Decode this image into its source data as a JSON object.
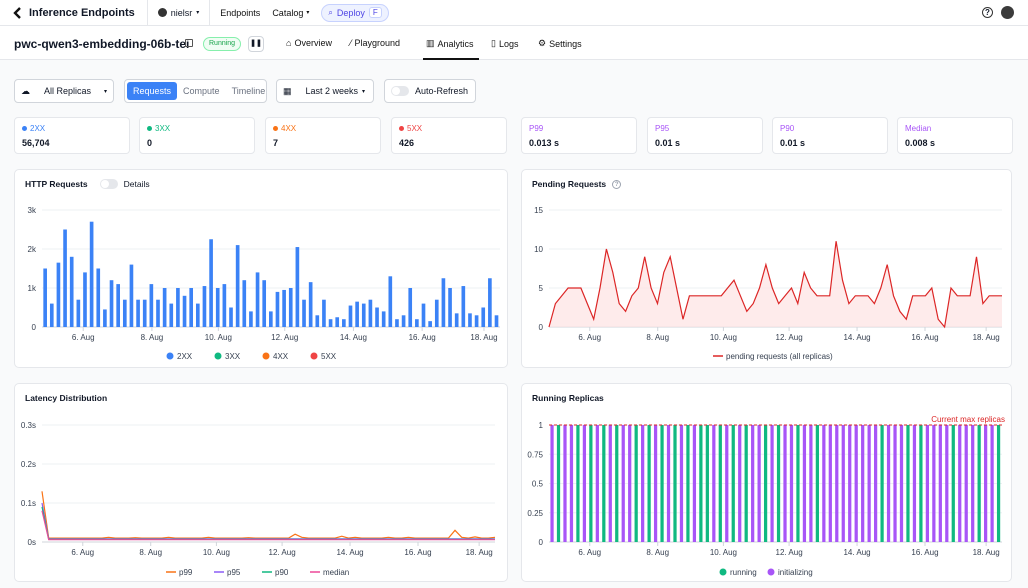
{
  "topbar": {
    "brand": "Inference Endpoints",
    "user": "nielsr",
    "nav": [
      "Endpoints",
      "Catalog"
    ],
    "deploy_label": "Deploy",
    "deploy_shortcut": "F"
  },
  "endpoint": {
    "name": "pwc-qwen3-embedding-06b-tei",
    "status": "Running",
    "tabs": [
      "Overview",
      "Playground",
      "Analytics",
      "Logs",
      "Settings"
    ],
    "active_tab": "Analytics"
  },
  "controls": {
    "replicas": "All Replicas",
    "view_tabs": [
      "Requests",
      "Compute",
      "Timeline"
    ],
    "active_view": "Requests",
    "range": "Last 2 weeks",
    "auto_refresh": "Auto-Refresh"
  },
  "stats": [
    {
      "label": "2XX",
      "value": "56,704",
      "color": "#3b82f6",
      "dot": true
    },
    {
      "label": "3XX",
      "value": "0",
      "color": "#10b981",
      "dot": true
    },
    {
      "label": "4XX",
      "value": "7",
      "color": "#f97316",
      "dot": true
    },
    {
      "label": "5XX",
      "value": "426",
      "color": "#ef4444",
      "dot": true
    },
    {
      "label": "P99",
      "value": "0.013 s",
      "color": "#a855f7",
      "dot": false
    },
    {
      "label": "P95",
      "value": "0.01 s",
      "color": "#a855f7",
      "dot": false
    },
    {
      "label": "P90",
      "value": "0.01 s",
      "color": "#a855f7",
      "dot": false
    },
    {
      "label": "Median",
      "value": "0.008 s",
      "color": "#a855f7",
      "dot": false
    }
  ],
  "panels": {
    "http": {
      "title": "HTTP Requests",
      "toggle": "Details"
    },
    "pending": {
      "title": "Pending Requests"
    },
    "latency": {
      "title": "Latency Distribution"
    },
    "replicas": {
      "title": "Running Replicas",
      "annotation": "Current max replicas"
    }
  },
  "chart_data": [
    {
      "type": "bar",
      "title": "HTTP Requests",
      "x_ticks": [
        "6. Aug",
        "8. Aug",
        "10. Aug",
        "12. Aug",
        "14. Aug",
        "16. Aug",
        "18. Aug"
      ],
      "y_ticks": [
        "0",
        "1k",
        "2k",
        "3k"
      ],
      "ylim": [
        0,
        3000
      ],
      "series": [
        {
          "name": "2XX",
          "color": "#3b82f6",
          "values": [
            1500,
            600,
            1650,
            2500,
            1800,
            700,
            1400,
            2700,
            1500,
            450,
            1200,
            1100,
            700,
            1600,
            700,
            700,
            1100,
            700,
            1000,
            600,
            1000,
            800,
            1000,
            600,
            1050,
            2250,
            1000,
            1100,
            500,
            2100,
            1200,
            400,
            1400,
            1200,
            400,
            900,
            950,
            1000,
            2050,
            700,
            1150,
            300,
            700,
            200,
            250,
            200,
            550,
            650,
            600,
            700,
            500,
            400,
            1300,
            200,
            300,
            1000,
            200,
            600,
            150,
            700,
            1250,
            1000,
            350,
            1050,
            350,
            300,
            500,
            1250,
            300
          ]
        },
        {
          "name": "3XX",
          "color": "#10b981",
          "values": []
        },
        {
          "name": "4XX",
          "color": "#f97316",
          "values": []
        },
        {
          "name": "5XX",
          "color": "#ef4444",
          "values": []
        }
      ]
    },
    {
      "type": "area",
      "title": "Pending Requests",
      "x_ticks": [
        "6. Aug",
        "8. Aug",
        "10. Aug",
        "12. Aug",
        "14. Aug",
        "16. Aug",
        "18. Aug"
      ],
      "y_ticks": [
        "0",
        "5",
        "10",
        "15"
      ],
      "ylim": [
        0,
        15
      ],
      "series": [
        {
          "name": "pending requests (all replicas)",
          "color": "#dc2626",
          "values": [
            0,
            3,
            4,
            5,
            5,
            5,
            3,
            1,
            5,
            10,
            7,
            3,
            2,
            4,
            5,
            9,
            5,
            3,
            7,
            9,
            5,
            1,
            4,
            4,
            4,
            4,
            4,
            4,
            5,
            6,
            4,
            2,
            3,
            5,
            8,
            5,
            3,
            4,
            5,
            3,
            7,
            5,
            4,
            4,
            4,
            11,
            6,
            3,
            4,
            4,
            4,
            3,
            5,
            8,
            4,
            2,
            1,
            4,
            4,
            4,
            5,
            1,
            0,
            5,
            4,
            4,
            4,
            9,
            3,
            4,
            4,
            4
          ]
        }
      ]
    },
    {
      "type": "line",
      "title": "Latency Distribution",
      "x_ticks": [
        "6. Aug",
        "8. Aug",
        "10. Aug",
        "12. Aug",
        "14. Aug",
        "16. Aug",
        "18. Aug"
      ],
      "y_ticks": [
        "0s",
        "0.1s",
        "0.2s",
        "0.3s"
      ],
      "ylim": [
        0,
        0.3
      ],
      "series": [
        {
          "name": "p99",
          "color": "#f97316",
          "values": [
            0.13,
            0.01,
            0.01,
            0.01,
            0.01,
            0.01,
            0.01,
            0.01,
            0.01,
            0.01,
            0.012,
            0.01,
            0.01,
            0.01,
            0.011,
            0.01,
            0.01,
            0.01,
            0.01,
            0.012,
            0.01,
            0.01,
            0.01,
            0.01,
            0.01,
            0.012,
            0.01,
            0.01,
            0.01,
            0.01,
            0.01,
            0.011,
            0.01,
            0.01,
            0.01,
            0.01,
            0.01,
            0.01,
            0.02,
            0.012,
            0.01,
            0.01,
            0.01,
            0.01,
            0.01,
            0.015,
            0.01,
            0.012,
            0.01,
            0.01,
            0.01,
            0.01,
            0.012,
            0.01,
            0.01,
            0.012,
            0.01,
            0.01,
            0.01,
            0.01,
            0.01,
            0.01,
            0.03,
            0.012,
            0.01,
            0.013,
            0.01,
            0.01,
            0.012
          ]
        },
        {
          "name": "p95",
          "color": "#8b5cf6",
          "values": [
            0.1,
            0.008,
            0.008,
            0.008,
            0.008,
            0.008,
            0.008,
            0.008,
            0.008,
            0.008,
            0.008,
            0.008,
            0.008,
            0.008,
            0.008,
            0.008,
            0.008,
            0.008,
            0.008,
            0.008,
            0.008,
            0.008,
            0.008,
            0.008,
            0.008,
            0.008,
            0.008,
            0.008,
            0.008,
            0.008,
            0.008,
            0.008,
            0.008,
            0.008,
            0.008,
            0.008,
            0.008,
            0.008,
            0.008,
            0.008,
            0.008,
            0.008,
            0.008,
            0.008,
            0.008,
            0.008,
            0.008,
            0.008,
            0.008,
            0.008,
            0.008,
            0.008,
            0.008,
            0.008,
            0.008,
            0.008,
            0.008,
            0.008,
            0.008,
            0.008,
            0.008,
            0.008,
            0.008,
            0.008,
            0.008,
            0.008,
            0.008,
            0.008,
            0.008
          ]
        },
        {
          "name": "p90",
          "color": "#10b981",
          "values": [
            0.09,
            0.007,
            0.007,
            0.007,
            0.007,
            0.007,
            0.007,
            0.007,
            0.007,
            0.007,
            0.007,
            0.007,
            0.007,
            0.007,
            0.007,
            0.007,
            0.007,
            0.007,
            0.007,
            0.007,
            0.007,
            0.007,
            0.007,
            0.007,
            0.007,
            0.007,
            0.007,
            0.007,
            0.007,
            0.007,
            0.007,
            0.007,
            0.007,
            0.007,
            0.007,
            0.007,
            0.007,
            0.007,
            0.007,
            0.007,
            0.007,
            0.007,
            0.007,
            0.007,
            0.007,
            0.007,
            0.007,
            0.007,
            0.007,
            0.007,
            0.007,
            0.007,
            0.007,
            0.007,
            0.007,
            0.007,
            0.007,
            0.007,
            0.007,
            0.007,
            0.007,
            0.007,
            0.007,
            0.007,
            0.007,
            0.007,
            0.007,
            0.007,
            0.007
          ]
        },
        {
          "name": "median",
          "color": "#ec4899",
          "values": [
            0.08,
            0.006,
            0.006,
            0.006,
            0.006,
            0.006,
            0.006,
            0.006,
            0.006,
            0.006,
            0.006,
            0.006,
            0.006,
            0.006,
            0.006,
            0.006,
            0.006,
            0.006,
            0.006,
            0.006,
            0.006,
            0.006,
            0.006,
            0.006,
            0.006,
            0.006,
            0.006,
            0.006,
            0.006,
            0.006,
            0.006,
            0.006,
            0.006,
            0.006,
            0.006,
            0.006,
            0.006,
            0.006,
            0.006,
            0.006,
            0.006,
            0.006,
            0.006,
            0.006,
            0.006,
            0.006,
            0.006,
            0.006,
            0.006,
            0.006,
            0.006,
            0.006,
            0.006,
            0.006,
            0.006,
            0.006,
            0.006,
            0.006,
            0.006,
            0.006,
            0.006,
            0.006,
            0.006,
            0.006,
            0.006,
            0.006,
            0.006,
            0.006,
            0.006
          ]
        }
      ]
    },
    {
      "type": "bar",
      "title": "Running Replicas",
      "x_ticks": [
        "6. Aug",
        "8. Aug",
        "10. Aug",
        "12. Aug",
        "14. Aug",
        "16. Aug",
        "18. Aug"
      ],
      "y_ticks": [
        "0",
        "0.25",
        "0.5",
        "0.75",
        "1"
      ],
      "ylim": [
        0,
        1
      ],
      "series": [
        {
          "name": "running",
          "color": "#10b981"
        },
        {
          "name": "initializing",
          "color": "#a855f7"
        }
      ],
      "bar_states": [
        "i",
        "r",
        "i",
        "i",
        "r",
        "i",
        "r",
        "i",
        "r",
        "i",
        "r",
        "i",
        "i",
        "r",
        "i",
        "r",
        "i",
        "r",
        "i",
        "r",
        "i",
        "r",
        "i",
        "r",
        "r",
        "i",
        "r",
        "i",
        "r",
        "i",
        "r",
        "i",
        "i",
        "r",
        "i",
        "r",
        "i",
        "i",
        "r",
        "i",
        "i",
        "r",
        "i",
        "i",
        "i",
        "i",
        "i",
        "i",
        "i",
        "i",
        "i",
        "r",
        "i",
        "i",
        "i",
        "r",
        "i",
        "r",
        "i",
        "i",
        "i",
        "i",
        "r",
        "i",
        "i",
        "i",
        "r",
        "i",
        "i",
        "r"
      ],
      "bar_value": 1
    }
  ]
}
